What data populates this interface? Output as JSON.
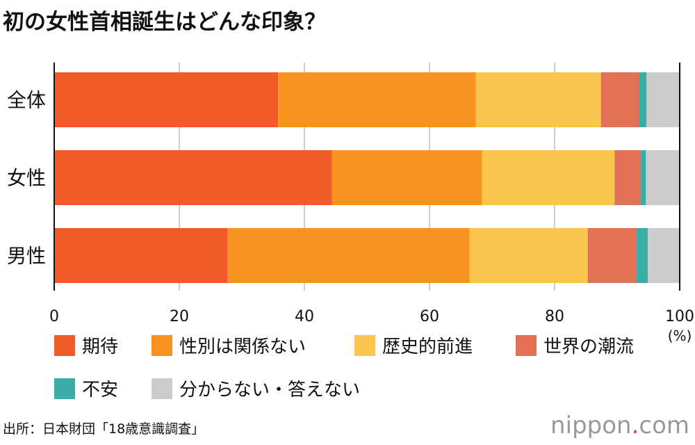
{
  "title": "初の女性首相誕生はどんな印象？",
  "source": "出所：日本財団「18歳意識調査」",
  "logo": "nippon.com",
  "chart_data": {
    "type": "bar",
    "orientation": "horizontal",
    "stacked": true,
    "categories": [
      "全体",
      "女性",
      "男性"
    ],
    "xlim": [
      0,
      100
    ],
    "xticks": [
      "0",
      "20",
      "40",
      "60",
      "80",
      "100"
    ],
    "xunit": "(%)",
    "grid": true,
    "legend_placement": "bottom",
    "series": [
      {
        "name": "期待",
        "color": "#f15a29",
        "values": [
          35.8,
          44.4,
          27.7
        ]
      },
      {
        "name": "性別は関係ない",
        "color": "#f7931e",
        "values": [
          31.6,
          24.0,
          38.7
        ]
      },
      {
        "name": "歴史的前進",
        "color": "#f9c54d",
        "values": [
          20.0,
          21.2,
          18.9
        ]
      },
      {
        "name": "世界の潮流",
        "color": "#e27055",
        "values": [
          6.1,
          4.1,
          7.8
        ]
      },
      {
        "name": "不安",
        "color": "#3aada8",
        "values": [
          1.2,
          0.9,
          1.8
        ]
      },
      {
        "name": "分からない・答えない",
        "color": "#cccccc",
        "values": [
          5.3,
          5.4,
          5.1
        ]
      }
    ]
  }
}
